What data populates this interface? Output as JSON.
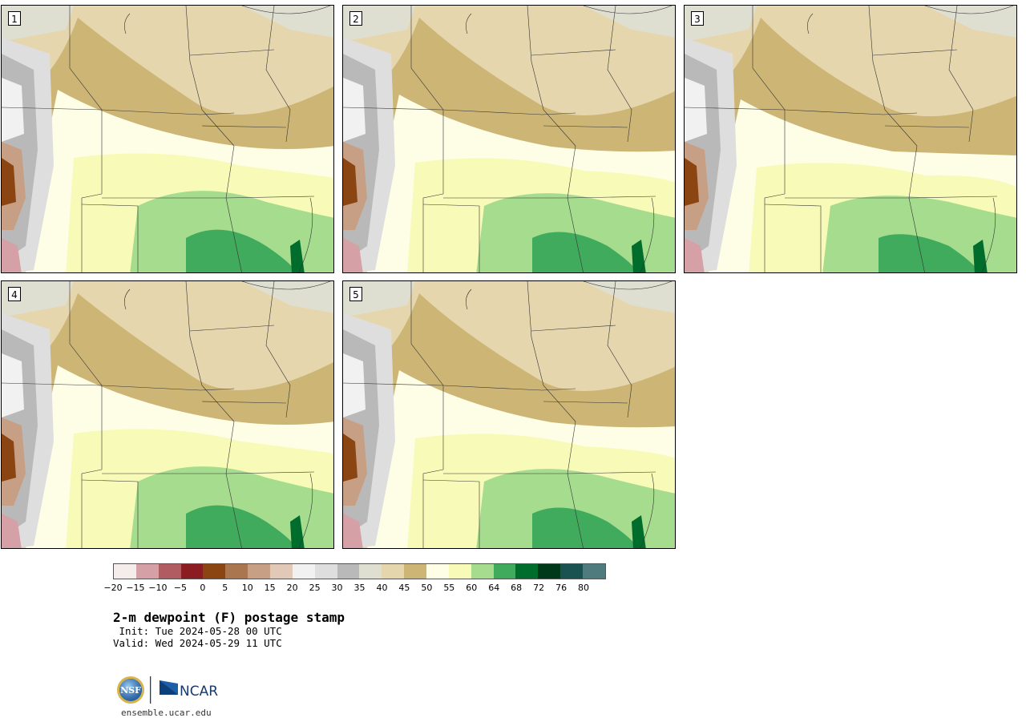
{
  "panels": [
    {
      "label": "1"
    },
    {
      "label": "2"
    },
    {
      "label": "3"
    },
    {
      "label": "4"
    },
    {
      "label": "5"
    }
  ],
  "colorbar": {
    "colors": [
      "#f5ecec",
      "#d5a0a6",
      "#b05c61",
      "#8b1c22",
      "#8b4513",
      "#a97650",
      "#c79f84",
      "#e2c8b7",
      "#f1f1f1",
      "#dedede",
      "#b9b9b9",
      "#dfdfd1",
      "#e5d6ad",
      "#cdb576",
      "#fefee7",
      "#f7fbb7",
      "#a6dc8e",
      "#41ab5d",
      "#006d2c",
      "#00391a",
      "#1a5151",
      "#4f7b7f"
    ],
    "ticks": [
      "−20",
      "−15",
      "−10",
      "−5",
      "0",
      "5",
      "10",
      "15",
      "20",
      "25",
      "30",
      "35",
      "40",
      "45",
      "50",
      "55",
      "60",
      "64",
      "68",
      "72",
      "76",
      "80"
    ]
  },
  "title": "2-m dewpoint (F) postage stamp",
  "init": " Init: Tue 2024-05-28 00 UTC",
  "valid": "Valid: Wed 2024-05-29 11 UTC",
  "logo": {
    "left": "NSF",
    "right": "NCAR"
  },
  "url": "ensemble.ucar.edu"
}
